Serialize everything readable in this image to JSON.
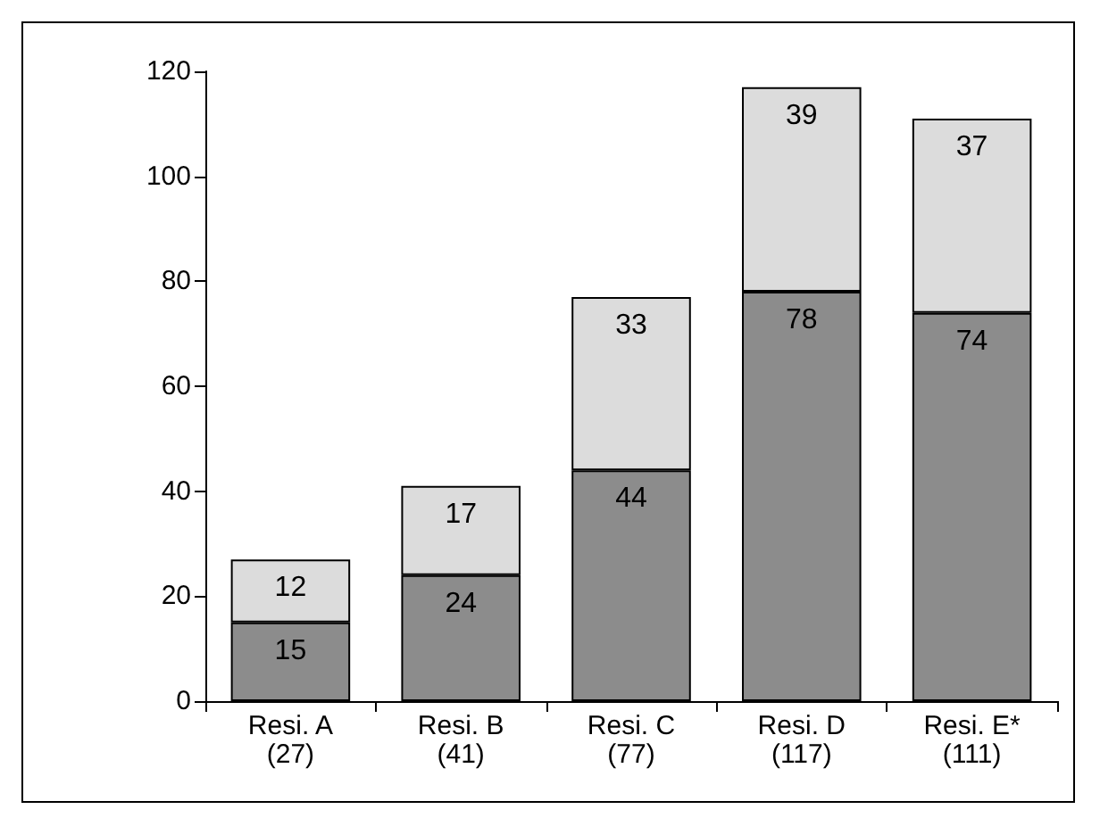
{
  "chart_data": {
    "type": "bar",
    "stacked": true,
    "data_labels": true,
    "grid": false,
    "categories": [
      "Resi. A\n(27)",
      "Resi. B\n(41)",
      "Resi. C\n(77)",
      "Resi. D\n(117)",
      "Resi. E*\n(111)"
    ],
    "series": [
      {
        "color": "#8c8c8c",
        "values": [
          15,
          24,
          44,
          78,
          74
        ]
      },
      {
        "color": "#dcdcdc",
        "values": [
          12,
          17,
          33,
          39,
          37
        ]
      }
    ],
    "ylim": [
      0,
      120
    ],
    "yticks": [
      0,
      20,
      40,
      60,
      80,
      100,
      120
    ]
  }
}
